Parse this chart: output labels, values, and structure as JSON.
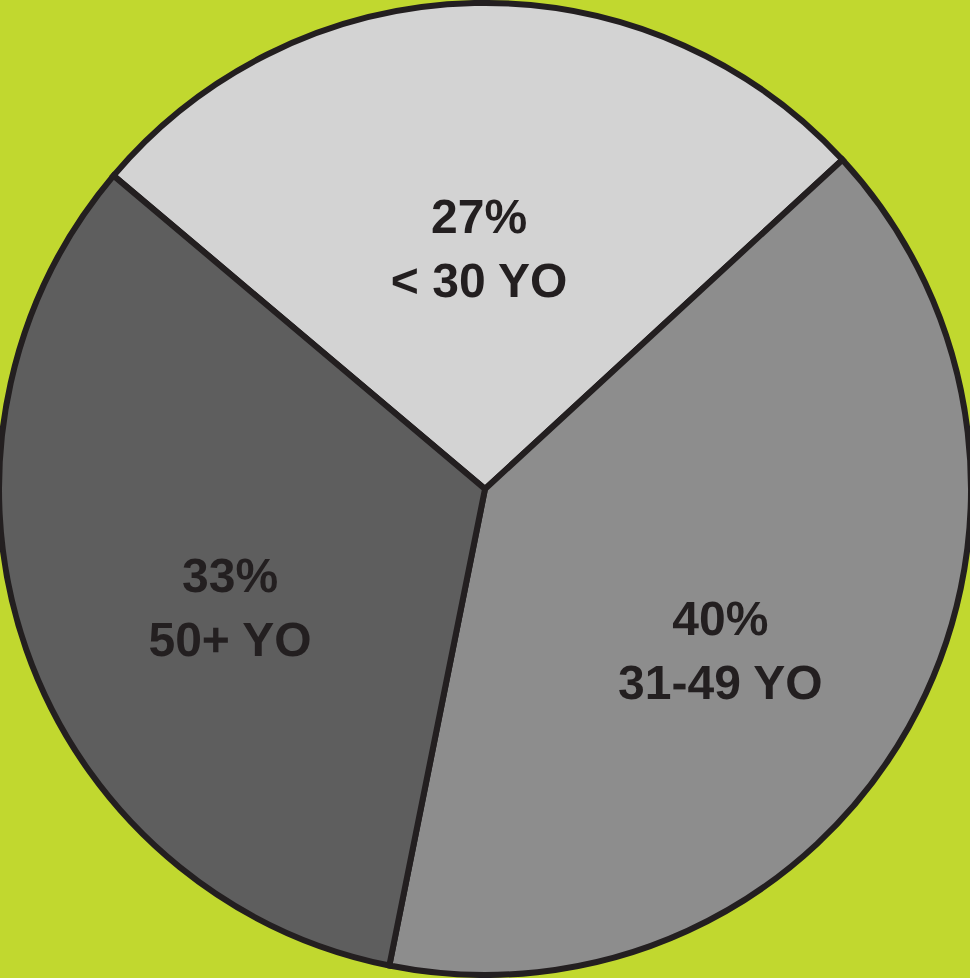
{
  "chart_data": {
    "type": "pie",
    "categories": [
      "< 30 YO",
      "31-49 YO",
      "50+ YO"
    ],
    "values": [
      27,
      40,
      33
    ],
    "value_labels": [
      "27%",
      "40%",
      "33%"
    ],
    "colors": [
      "#d3d3d3",
      "#8d8d8d",
      "#5e5e5e"
    ]
  }
}
